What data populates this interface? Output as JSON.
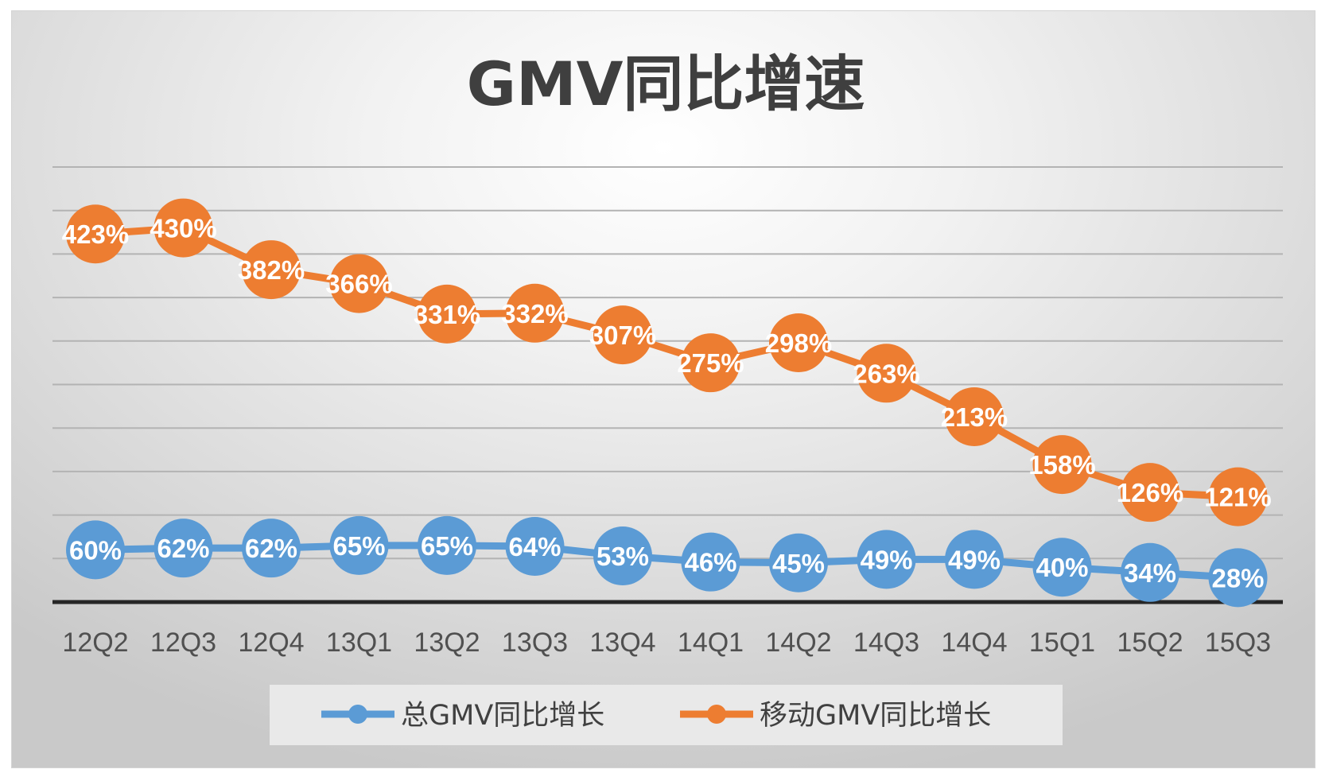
{
  "chart_data": {
    "type": "line",
    "title": "GMV同比增速",
    "categories": [
      "12Q2",
      "12Q3",
      "12Q4",
      "13Q1",
      "13Q2",
      "13Q3",
      "13Q4",
      "14Q1",
      "14Q2",
      "14Q3",
      "14Q4",
      "15Q1",
      "15Q2",
      "15Q3"
    ],
    "series": [
      {
        "name": "总GMV同比增长",
        "color": "#5b9bd5",
        "values": [
          60,
          62,
          62,
          65,
          65,
          64,
          53,
          46,
          45,
          49,
          49,
          40,
          34,
          28
        ],
        "labels": [
          "60%",
          "62%",
          "62%",
          "65%",
          "65%",
          "64%",
          "53%",
          "46%",
          "45%",
          "49%",
          "49%",
          "40%",
          "34%",
          "28%"
        ]
      },
      {
        "name": "移动GMV同比增长",
        "color": "#ed7d31",
        "values": [
          423,
          430,
          382,
          366,
          331,
          332,
          307,
          275,
          298,
          263,
          213,
          158,
          126,
          121
        ],
        "labels": [
          "423%",
          "430%",
          "382%",
          "366%",
          "331%",
          "332%",
          "307%",
          "275%",
          "298%",
          "263%",
          "213%",
          "158%",
          "126%",
          "121%"
        ]
      }
    ],
    "xlabel": "",
    "ylabel": "",
    "ylim": [
      0,
      500
    ],
    "grid": true,
    "y_tick_labels_shown": false,
    "legend_position": "bottom",
    "marker": "circle"
  }
}
